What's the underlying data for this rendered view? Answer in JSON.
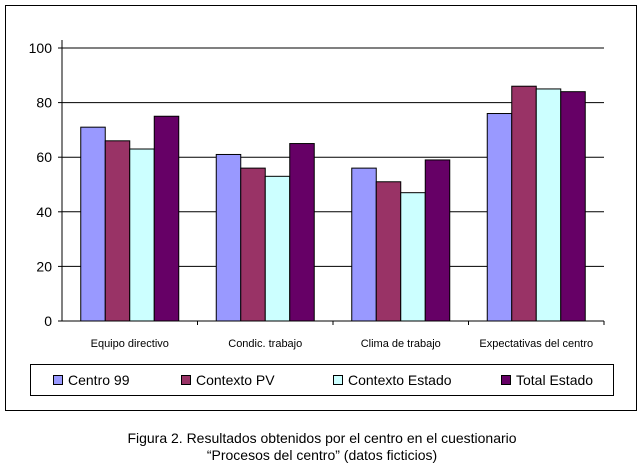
{
  "chart_data": {
    "type": "bar",
    "categories": [
      "Equipo directivo",
      "Condic. trabajo",
      "Clima de trabajo",
      "Expectativas del centro"
    ],
    "series": [
      {
        "name": "Centro 99",
        "color": "#9999ff",
        "values": [
          71,
          61,
          56,
          76
        ]
      },
      {
        "name": "Contexto PV",
        "color": "#993366",
        "values": [
          66,
          56,
          51,
          86
        ]
      },
      {
        "name": "Contexto Estado",
        "color": "#ccffff",
        "values": [
          63,
          53,
          47,
          85
        ]
      },
      {
        "name": "Total Estado",
        "color": "#660066",
        "values": [
          75,
          65,
          59,
          84
        ]
      }
    ],
    "ylim": [
      0,
      100
    ],
    "yticks": [
      0,
      20,
      40,
      60,
      80,
      100
    ],
    "grid": true,
    "legend_position": "bottom",
    "title": "",
    "xlabel": "",
    "ylabel": ""
  },
  "caption": {
    "line1": "Figura 2. Resultados obtenidos por el centro en el cuestionario",
    "line2": "“Procesos del centro” (datos ficticios)"
  }
}
